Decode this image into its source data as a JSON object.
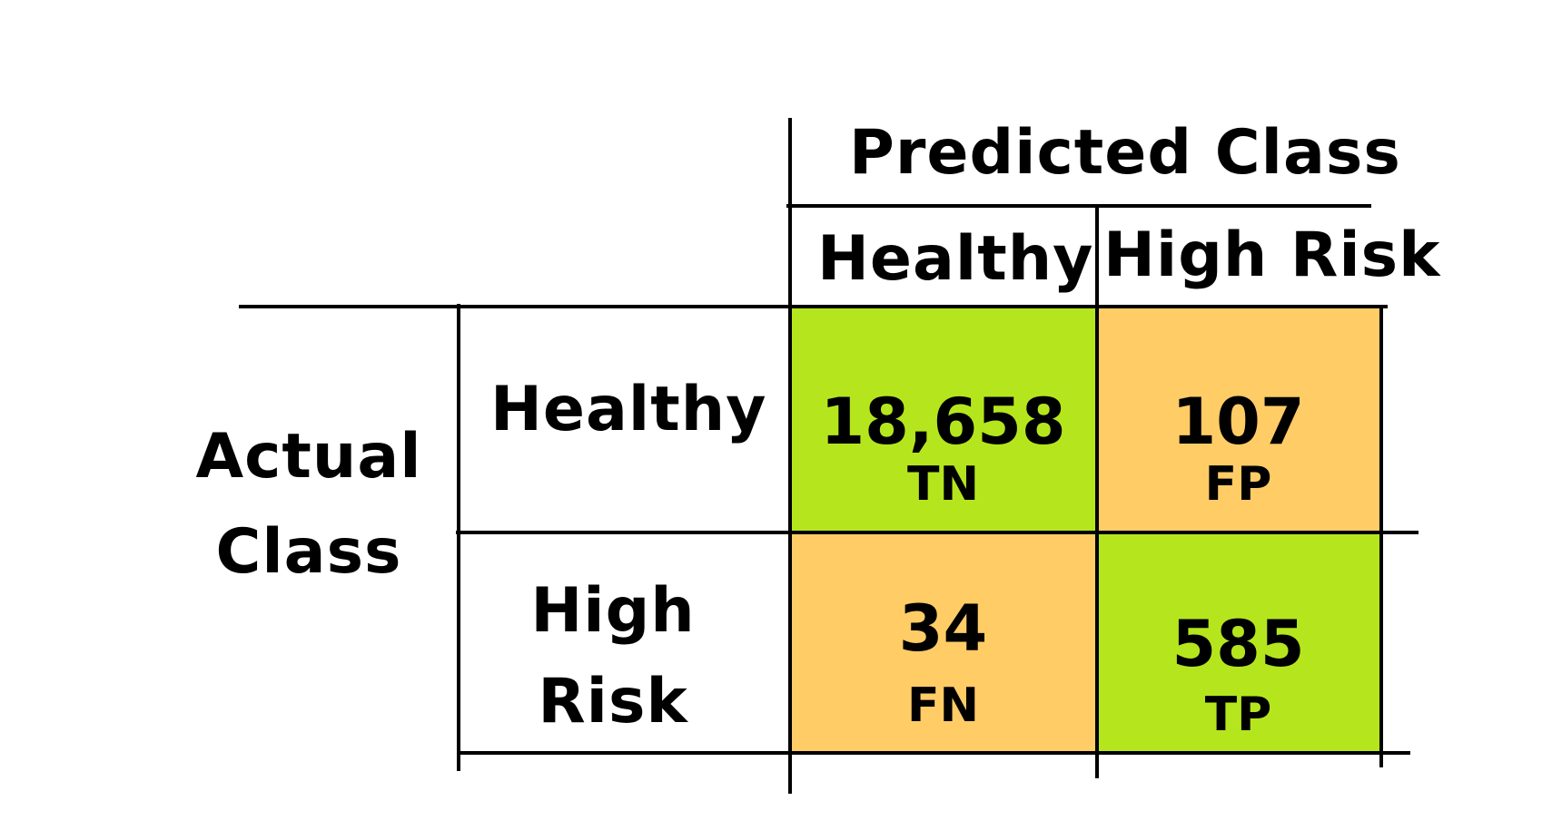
{
  "header": {
    "title": "Predicted Class",
    "columns": [
      "Healthy",
      "High Risk"
    ]
  },
  "side": {
    "title_line1": "Actual",
    "title_line2": "Class",
    "rows": [
      {
        "line1": "Healthy",
        "line2": ""
      },
      {
        "line1": "High",
        "line2": "Risk"
      }
    ]
  },
  "cells": [
    {
      "value": "18,658",
      "abbr": "TN",
      "color": "#b5e61d"
    },
    {
      "value": "107",
      "abbr": "FP",
      "color": "#ffcc66"
    },
    {
      "value": "34",
      "abbr": "FN",
      "color": "#ffcc66"
    },
    {
      "value": "585",
      "abbr": "TP",
      "color": "#b5e61d"
    }
  ],
  "colors": {
    "correct": "#b5e61d",
    "error": "#ffcc66",
    "line": "#000000"
  }
}
